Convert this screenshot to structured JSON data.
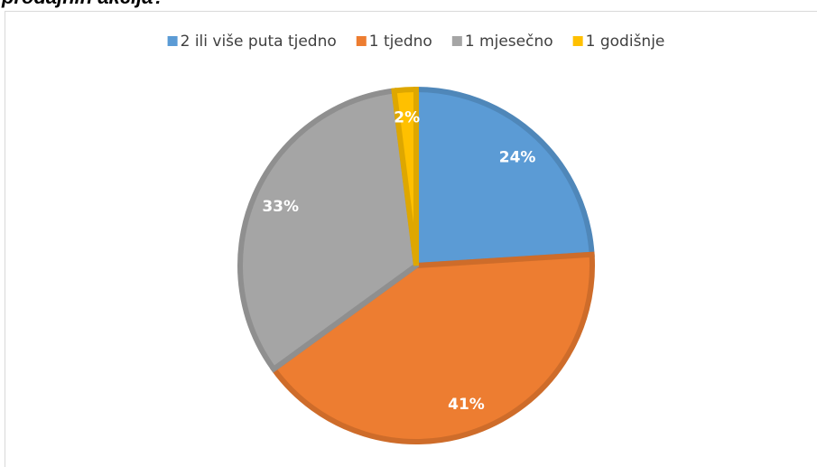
{
  "chart_data": {
    "type": "pie",
    "title": "prodajnih akcija?",
    "categories": [
      "2 ili više puta tjedno",
      "1 tjedno",
      "1 mjesečno",
      "1 godišnje"
    ],
    "values": [
      24,
      41,
      33,
      2
    ],
    "value_labels": [
      "24%",
      "41%",
      "33%",
      "2%"
    ],
    "colors": [
      "#5b9bd5",
      "#ed7d31",
      "#a5a5a5",
      "#ffc000"
    ],
    "legend": "top"
  }
}
